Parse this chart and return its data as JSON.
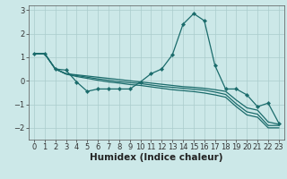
{
  "bg_color": "#cce8e8",
  "line_color": "#1a6b6b",
  "grid_color": "#aacccc",
  "xlabel": "Humidex (Indice chaleur)",
  "xlabel_fontsize": 7.5,
  "tick_fontsize": 6,
  "ylim": [
    -2.5,
    3.2
  ],
  "xlim": [
    -0.5,
    23.5
  ],
  "yticks": [
    -2,
    -1,
    0,
    1,
    2,
    3
  ],
  "xticks": [
    0,
    1,
    2,
    3,
    4,
    5,
    6,
    7,
    8,
    9,
    10,
    11,
    12,
    13,
    14,
    15,
    16,
    17,
    18,
    19,
    20,
    21,
    22,
    23
  ],
  "line1_x": [
    0,
    1,
    2,
    3,
    4,
    5,
    6,
    7,
    8,
    9,
    10,
    11,
    12,
    13,
    14,
    15,
    16,
    17,
    18,
    19,
    20,
    21,
    22,
    23
  ],
  "line1_y": [
    1.15,
    1.15,
    0.5,
    0.45,
    -0.05,
    -0.45,
    -0.35,
    -0.35,
    -0.35,
    -0.35,
    -0.05,
    0.3,
    0.5,
    1.1,
    2.4,
    2.85,
    2.55,
    0.65,
    -0.35,
    -0.35,
    -0.6,
    -1.1,
    -0.95,
    -1.8
  ],
  "line2_x": [
    0,
    1,
    2,
    3,
    4,
    5,
    6,
    7,
    8,
    9,
    10,
    11,
    12,
    13,
    14,
    15,
    16,
    17,
    18,
    19,
    20,
    21,
    22,
    23
  ],
  "line2_y": [
    1.15,
    1.15,
    0.5,
    0.3,
    0.25,
    0.2,
    0.15,
    0.1,
    0.05,
    0.0,
    -0.05,
    -0.1,
    -0.15,
    -0.2,
    -0.25,
    -0.28,
    -0.32,
    -0.38,
    -0.45,
    -0.82,
    -1.15,
    -1.25,
    -1.75,
    -1.85
  ],
  "line3_x": [
    0,
    1,
    2,
    3,
    4,
    5,
    6,
    7,
    8,
    9,
    10,
    11,
    12,
    13,
    14,
    15,
    16,
    17,
    18,
    19,
    20,
    21,
    22,
    23
  ],
  "line3_y": [
    1.15,
    1.15,
    0.5,
    0.3,
    0.22,
    0.15,
    0.08,
    0.02,
    -0.04,
    -0.08,
    -0.12,
    -0.18,
    -0.24,
    -0.28,
    -0.32,
    -0.36,
    -0.4,
    -0.48,
    -0.58,
    -0.98,
    -1.32,
    -1.42,
    -1.9,
    -1.9
  ],
  "line4_x": [
    0,
    1,
    2,
    3,
    4,
    5,
    6,
    7,
    8,
    9,
    10,
    11,
    12,
    13,
    14,
    15,
    16,
    17,
    18,
    19,
    20,
    21,
    22,
    23
  ],
  "line4_y": [
    1.15,
    1.15,
    0.5,
    0.28,
    0.18,
    0.1,
    0.02,
    -0.05,
    -0.1,
    -0.16,
    -0.2,
    -0.26,
    -0.32,
    -0.38,
    -0.42,
    -0.46,
    -0.52,
    -0.6,
    -0.7,
    -1.1,
    -1.45,
    -1.55,
    -2.0,
    -2.0
  ]
}
